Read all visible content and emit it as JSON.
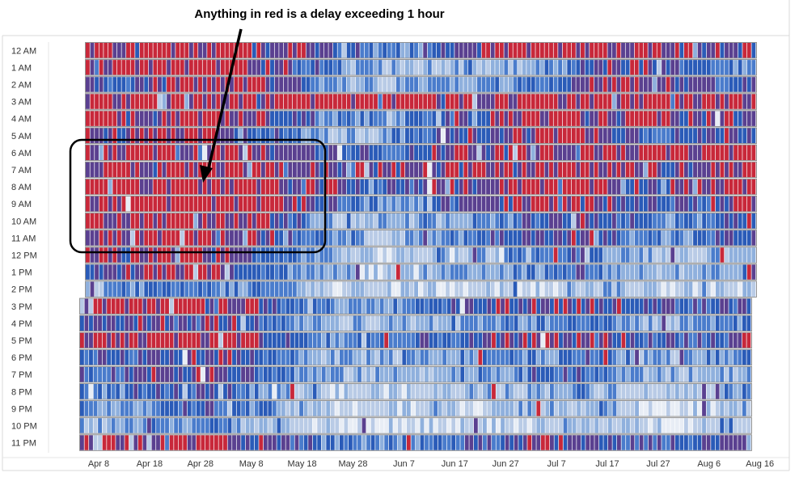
{
  "chart_data": {
    "type": "heatmap",
    "title": "",
    "xlabel": "",
    "ylabel": "",
    "annotation": "Anything in red is a delay exceeding 1 hour",
    "y_categories": [
      "12 AM",
      "1 AM",
      "2 AM",
      "3 AM",
      "4 AM",
      "5 AM",
      "6 AM",
      "7 AM",
      "8 AM",
      "9 AM",
      "10 AM",
      "11 AM",
      "12 PM",
      "1 PM",
      "2 PM",
      "3 PM",
      "4 PM",
      "5 PM",
      "6 PM",
      "7 PM",
      "8 PM",
      "9 PM",
      "10 PM",
      "11 PM"
    ],
    "x_tick_labels": [
      "Apr 8",
      "Apr 18",
      "Apr 28",
      "May 8",
      "May 18",
      "May 28",
      "Jun 7",
      "Jun 17",
      "Jun 27",
      "Jul 7",
      "Jul 17",
      "Jul 27",
      "Aug 6",
      "Aug 16"
    ],
    "x_range": [
      "Apr 1",
      "Aug 12"
    ],
    "color_scale": {
      "very_low": "#e8edf5",
      "low": "#b9cbe6",
      "medium_low": "#8fb0dd",
      "medium": "#4a7ccc",
      "medium_high": "#2a5bb8",
      "high": "#5a4090",
      "very_high": "#c8283a"
    },
    "grid": false,
    "row_profiles": {
      "12 AM": [
        6,
        6,
        6,
        6,
        6,
        5,
        5,
        4,
        3,
        3,
        4,
        5,
        6,
        6,
        6,
        6,
        6,
        5,
        5,
        5
      ],
      "1 AM": [
        6,
        6,
        6,
        6,
        6,
        5,
        4,
        3,
        2,
        2,
        2,
        2,
        2,
        3,
        4,
        5,
        5,
        4,
        3,
        3
      ],
      "2 AM": [
        4,
        4,
        5,
        6,
        6,
        5,
        4,
        3,
        2,
        2,
        3,
        3,
        3,
        4,
        5,
        6,
        6,
        5,
        4,
        4
      ],
      "3 AM": [
        6,
        6,
        6,
        6,
        6,
        6,
        6,
        6,
        6,
        6,
        6,
        6,
        6,
        6,
        6,
        6,
        6,
        6,
        6,
        6
      ],
      "4 AM": [
        6,
        5,
        5,
        6,
        6,
        5,
        4,
        3,
        3,
        3,
        4,
        5,
        5,
        6,
        6,
        6,
        6,
        5,
        5,
        5
      ],
      "5 AM": [
        5,
        5,
        6,
        6,
        5,
        4,
        3,
        2,
        2,
        3,
        4,
        5,
        5,
        6,
        6,
        5,
        4,
        4,
        5,
        5
      ],
      "6 AM": [
        6,
        6,
        6,
        6,
        6,
        5,
        5,
        4,
        4,
        4,
        5,
        5,
        5,
        6,
        6,
        6,
        6,
        6,
        6,
        6
      ],
      "7 AM": [
        6,
        6,
        6,
        6,
        6,
        6,
        5,
        5,
        5,
        5,
        5,
        6,
        6,
        6,
        6,
        6,
        5,
        5,
        6,
        6
      ],
      "8 AM": [
        6,
        6,
        6,
        6,
        6,
        6,
        5,
        5,
        4,
        4,
        5,
        5,
        6,
        6,
        6,
        5,
        5,
        5,
        6,
        6
      ],
      "9 AM": [
        6,
        6,
        6,
        6,
        6,
        6,
        5,
        4,
        3,
        3,
        4,
        5,
        5,
        6,
        6,
        5,
        4,
        4,
        5,
        6
      ],
      "10 AM": [
        6,
        6,
        6,
        6,
        6,
        5,
        4,
        2,
        2,
        2,
        2,
        3,
        4,
        4,
        5,
        4,
        3,
        3,
        4,
        5
      ],
      "11 AM": [
        5,
        6,
        6,
        6,
        6,
        5,
        4,
        3,
        2,
        2,
        3,
        3,
        4,
        5,
        5,
        4,
        3,
        3,
        4,
        5
      ],
      "12 PM": [
        5,
        5,
        6,
        6,
        5,
        4,
        3,
        2,
        1,
        1,
        2,
        2,
        3,
        3,
        4,
        3,
        2,
        2,
        2,
        3
      ],
      "1 PM": [
        4,
        5,
        6,
        6,
        5,
        4,
        3,
        2,
        1,
        1,
        2,
        2,
        3,
        3,
        4,
        3,
        2,
        2,
        2,
        3
      ],
      "2 PM": [
        2,
        3,
        3,
        3,
        3,
        3,
        2,
        1,
        1,
        1,
        1,
        1,
        1,
        1,
        2,
        2,
        1,
        1,
        1,
        1
      ],
      "3 PM": [
        5,
        6,
        6,
        6,
        6,
        5,
        4,
        3,
        3,
        3,
        4,
        4,
        5,
        5,
        5,
        5,
        4,
        4,
        4,
        5
      ],
      "4 PM": [
        4,
        5,
        5,
        5,
        5,
        4,
        3,
        2,
        2,
        2,
        2,
        3,
        3,
        3,
        4,
        3,
        2,
        2,
        3,
        3
      ],
      "5 PM": [
        5,
        6,
        6,
        6,
        6,
        5,
        4,
        3,
        3,
        3,
        4,
        4,
        5,
        5,
        5,
        5,
        4,
        4,
        4,
        5
      ],
      "6 PM": [
        3,
        4,
        4,
        5,
        5,
        4,
        3,
        2,
        2,
        2,
        2,
        3,
        3,
        3,
        4,
        3,
        2,
        2,
        3,
        3
      ],
      "7 PM": [
        4,
        4,
        5,
        5,
        5,
        4,
        3,
        2,
        2,
        2,
        2,
        3,
        3,
        4,
        4,
        3,
        2,
        2,
        2,
        3
      ],
      "8 PM": [
        3,
        3,
        4,
        4,
        4,
        3,
        2,
        1,
        1,
        1,
        1,
        2,
        2,
        2,
        3,
        2,
        1,
        1,
        2,
        2
      ],
      "9 PM": [
        3,
        3,
        3,
        4,
        4,
        3,
        2,
        1,
        1,
        1,
        1,
        1,
        2,
        2,
        2,
        2,
        1,
        1,
        1,
        2
      ],
      "10 PM": [
        2,
        2,
        3,
        3,
        3,
        2,
        1,
        1,
        0,
        0,
        1,
        1,
        1,
        1,
        2,
        1,
        1,
        1,
        1,
        1
      ],
      "11 PM": [
        6,
        6,
        6,
        6,
        6,
        5,
        4,
        3,
        3,
        3,
        3,
        4,
        4,
        5,
        5,
        4,
        4,
        4,
        5,
        5
      ]
    }
  }
}
